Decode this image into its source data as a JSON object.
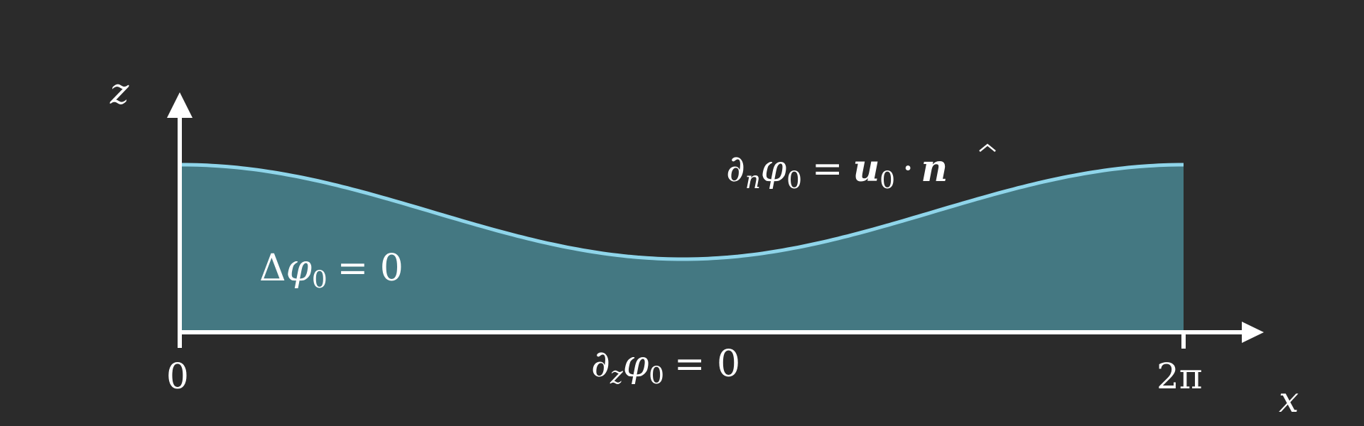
{
  "diagram": {
    "axis_labels": {
      "z": "z",
      "x": "x"
    },
    "ticks": {
      "zero": "0",
      "two_pi": "2π"
    },
    "equations": {
      "laplace": {
        "op": "Δ",
        "sym": "φ",
        "sub": "0",
        "rhs": "= 0"
      },
      "top_bc": {
        "op": "∂",
        "opsub": "n",
        "sym": "φ",
        "sub": "0",
        "eq": "=",
        "u": "u",
        "usub": "0",
        "dot": "·",
        "n": "n"
      },
      "bottom_bc": {
        "op": "∂",
        "opsub": "z",
        "sym": "φ",
        "sub": "0",
        "rhs": "= 0"
      }
    },
    "colors": {
      "background": "#2b2b2b",
      "fill": "#447882",
      "boundary": "#8fd5ea",
      "axis": "#ffffff"
    }
  }
}
